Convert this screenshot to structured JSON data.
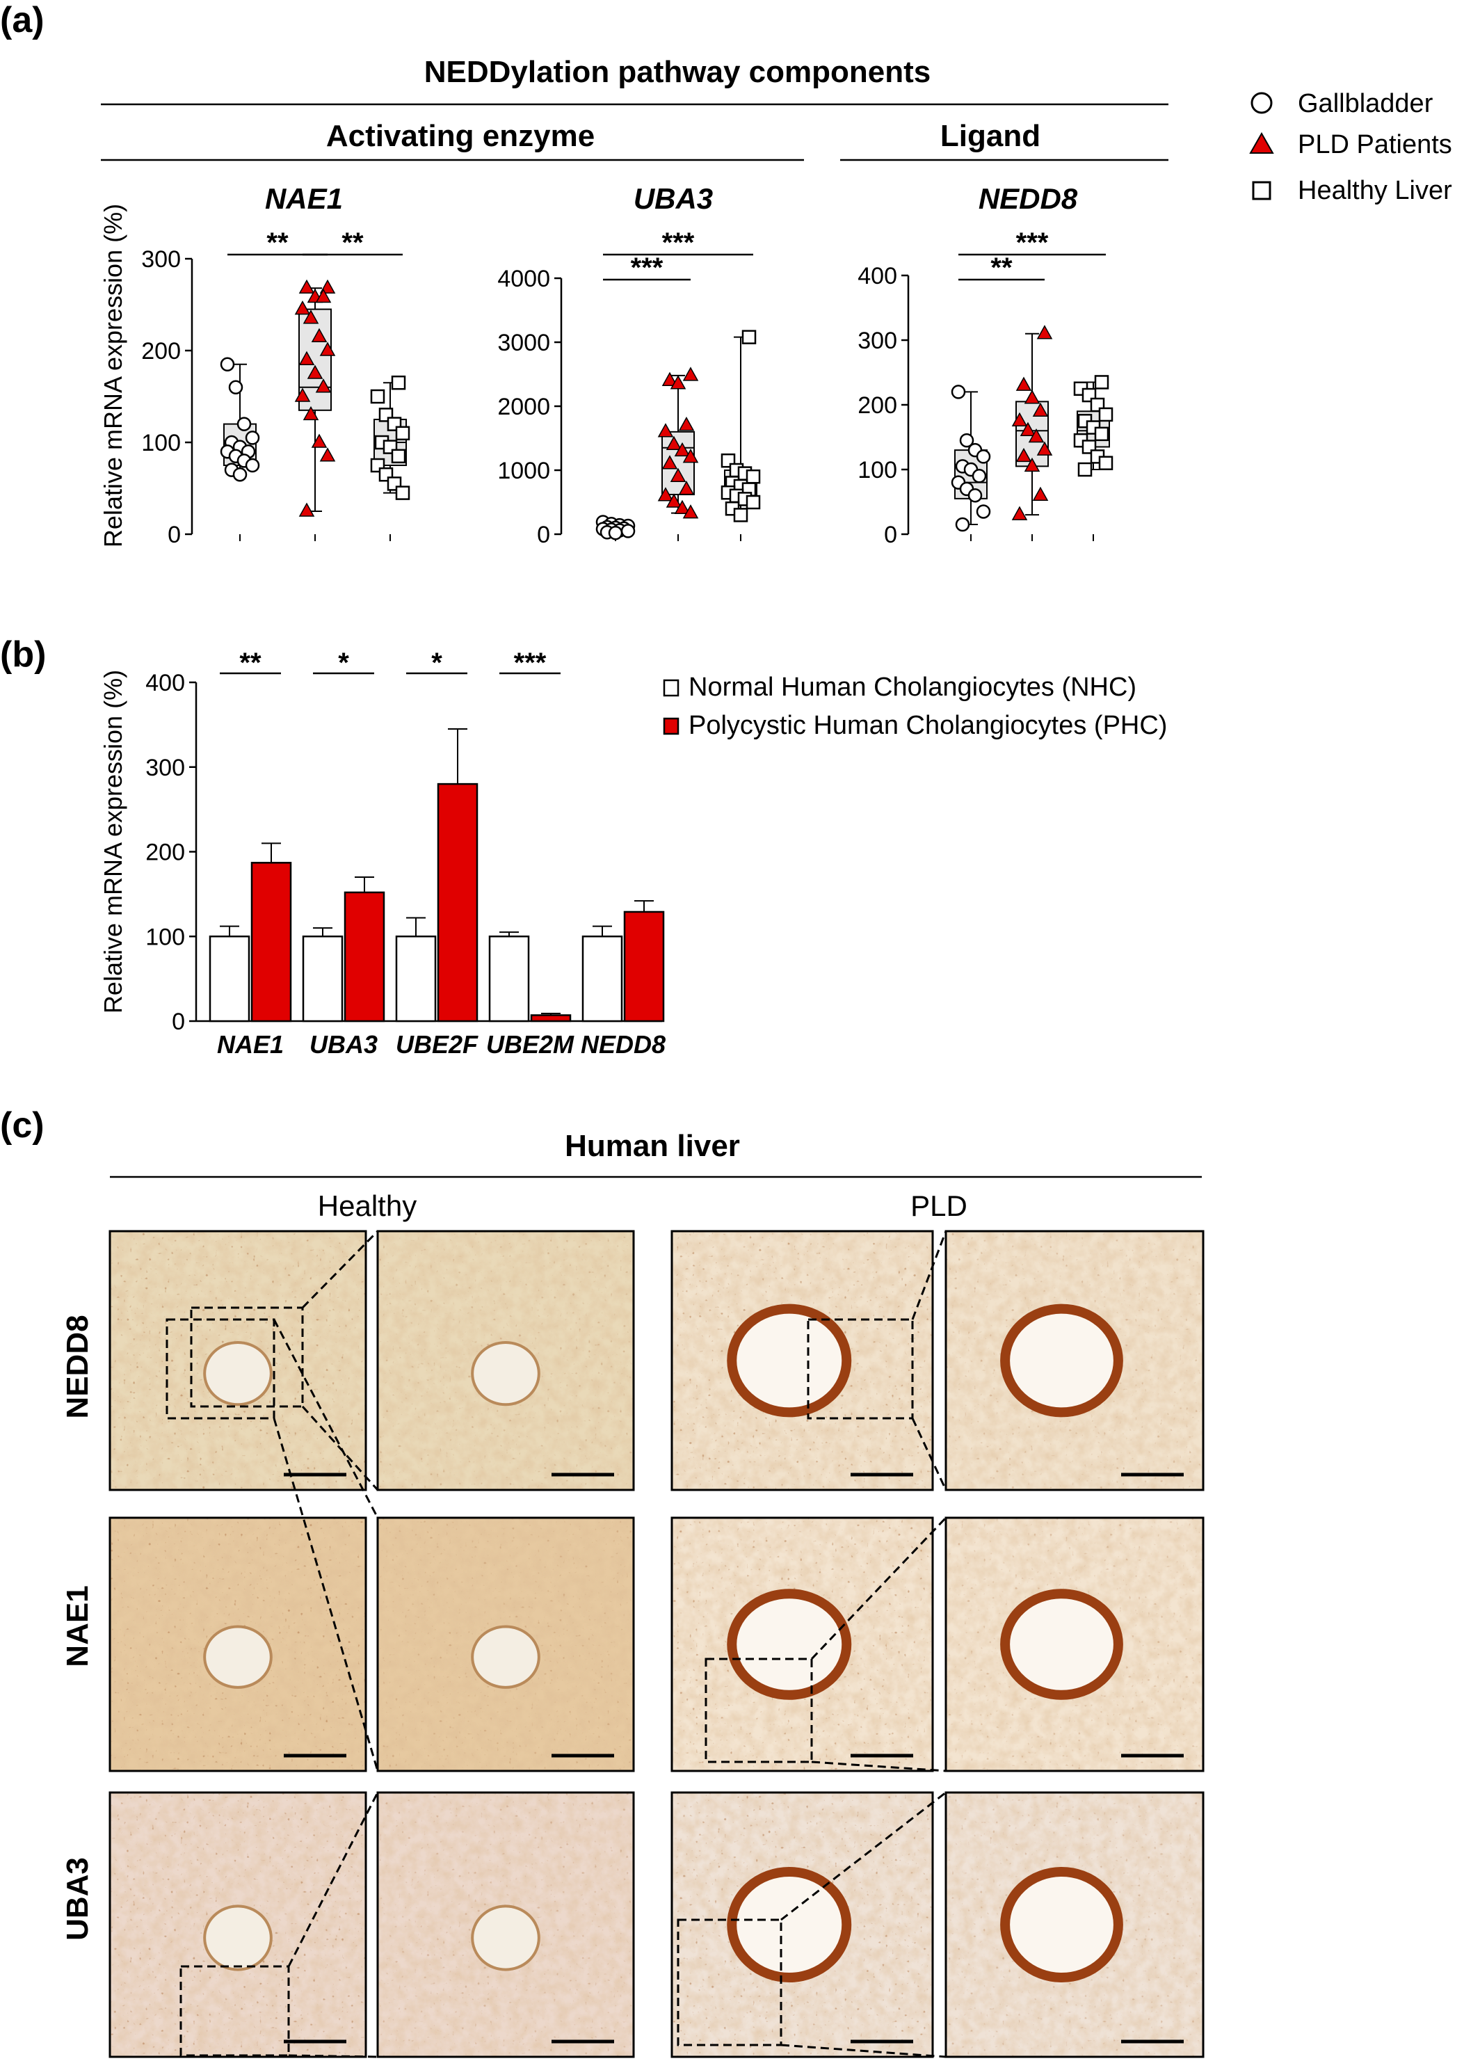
{
  "panels": {
    "a": {
      "label": "(a)",
      "header": "NEDDylation pathway components",
      "group_activating": "Activating enzyme",
      "group_ligand": "Ligand",
      "ylabel": "Relative mRNA expression (%)"
    },
    "b": {
      "label": "(b)",
      "ylabel": "Relative mRNA expression (%)"
    },
    "c": {
      "label": "(c)",
      "header": "Human liver",
      "col_healthy": "Healthy",
      "col_pld": "PLD",
      "rows": [
        "NEDD8",
        "NAE1",
        "UBA3"
      ]
    }
  },
  "legend_a": [
    {
      "label": "Gallbladder",
      "marker": "circle",
      "color": "#ffffff"
    },
    {
      "label": "PLD Patients",
      "marker": "triangle",
      "color": "#e00000"
    },
    {
      "label": "Healthy Liver",
      "marker": "square",
      "color": "#ffffff"
    }
  ],
  "legend_b": [
    {
      "label": "Normal Human Cholangiocytes (NHC)",
      "color": "#ffffff"
    },
    {
      "label": "Polycystic Human Cholangiocytes (PHC)",
      "color": "#e00000"
    }
  ],
  "colors": {
    "box_fill": "#e6e6e6",
    "red": "#e00000"
  },
  "chart_data": [
    {
      "type": "box",
      "title": "NAE1",
      "ylabel": "Relative mRNA expression (%)",
      "ylim": [
        0,
        300
      ],
      "yticks": [
        0,
        100,
        200,
        300
      ],
      "groups": [
        "Gallbladder",
        "PLD Patients",
        "Healthy Liver"
      ],
      "boxes": [
        {
          "min": 65,
          "q1": 75,
          "median": 90,
          "q3": 120,
          "max": 185
        },
        {
          "min": 25,
          "q1": 135,
          "median": 160,
          "q3": 245,
          "max": 268
        },
        {
          "min": 45,
          "q1": 75,
          "median": 100,
          "q3": 125,
          "max": 165
        }
      ],
      "points": [
        [
          185,
          160,
          120,
          105,
          100,
          95,
          90,
          90,
          85,
          80,
          75,
          70,
          65
        ],
        [
          268,
          268,
          258,
          258,
          245,
          235,
          215,
          200,
          190,
          175,
          160,
          150,
          130,
          100,
          85,
          25
        ],
        [
          165,
          150,
          130,
          120,
          110,
          100,
          95,
          85,
          75,
          65,
          55,
          45
        ]
      ],
      "significance": [
        {
          "pair": [
            0,
            1
          ],
          "label": "**"
        },
        {
          "pair": [
            1,
            2
          ],
          "label": "**"
        }
      ]
    },
    {
      "type": "box",
      "title": "UBA3",
      "ylim": [
        0,
        4000
      ],
      "yticks": [
        0,
        1000,
        2000,
        3000,
        4000
      ],
      "groups": [
        "Gallbladder",
        "PLD Patients",
        "Healthy Liver"
      ],
      "boxes": [
        {
          "min": 20,
          "q1": 50,
          "median": 90,
          "q3": 130,
          "max": 190
        },
        {
          "min": 330,
          "q1": 620,
          "median": 1350,
          "q3": 1600,
          "max": 2480
        },
        {
          "min": 300,
          "q1": 560,
          "median": 750,
          "q3": 1000,
          "max": 3080
        }
      ],
      "points": [
        [
          190,
          160,
          140,
          130,
          110,
          100,
          90,
          80,
          70,
          60,
          50,
          30,
          20
        ],
        [
          2480,
          2400,
          2350,
          1700,
          1600,
          1400,
          1300,
          1200,
          1100,
          900,
          700,
          600,
          500,
          400,
          330
        ],
        [
          3080,
          1150,
          1000,
          950,
          900,
          800,
          750,
          700,
          650,
          600,
          550,
          500,
          400,
          300
        ]
      ],
      "significance": [
        {
          "pair": [
            0,
            1
          ],
          "label": "***"
        },
        {
          "pair": [
            0,
            2
          ],
          "label": "***"
        }
      ]
    },
    {
      "type": "box",
      "title": "NEDD8",
      "ylim": [
        0,
        400
      ],
      "yticks": [
        0,
        100,
        200,
        300,
        400
      ],
      "groups": [
        "Gallbladder",
        "PLD Patients",
        "Healthy Liver"
      ],
      "boxes": [
        {
          "min": 15,
          "q1": 55,
          "median": 80,
          "q3": 130,
          "max": 220
        },
        {
          "min": 30,
          "q1": 105,
          "median": 160,
          "q3": 205,
          "max": 310
        },
        {
          "min": 100,
          "q1": 135,
          "median": 160,
          "q3": 190,
          "max": 235
        }
      ],
      "points": [
        [
          220,
          145,
          130,
          120,
          105,
          100,
          90,
          80,
          70,
          60,
          35,
          15
        ],
        [
          310,
          230,
          210,
          190,
          175,
          160,
          150,
          130,
          120,
          105,
          60,
          30
        ],
        [
          235,
          225,
          215,
          200,
          185,
          175,
          165,
          155,
          145,
          135,
          120,
          110,
          100
        ]
      ],
      "significance": [
        {
          "pair": [
            0,
            1
          ],
          "label": "**"
        },
        {
          "pair": [
            0,
            2
          ],
          "label": "***"
        }
      ]
    },
    {
      "type": "bar",
      "categories": [
        "NAE1",
        "UBA3",
        "UBE2F",
        "UBE2M",
        "NEDD8"
      ],
      "ylabel": "Relative mRNA expression (%)",
      "ylim": [
        0,
        400
      ],
      "yticks": [
        0,
        100,
        200,
        300,
        400
      ],
      "series": [
        {
          "name": "Normal Human Cholangiocytes (NHC)",
          "values": [
            100,
            100,
            100,
            100,
            100
          ],
          "errors": [
            12,
            10,
            22,
            5,
            12
          ]
        },
        {
          "name": "Polycystic Human Cholangiocytes (PHC)",
          "values": [
            187,
            152,
            280,
            7,
            129
          ],
          "errors": [
            23,
            18,
            65,
            2,
            13
          ]
        }
      ],
      "significance": [
        "**",
        "*",
        "*",
        "***",
        ""
      ]
    }
  ]
}
